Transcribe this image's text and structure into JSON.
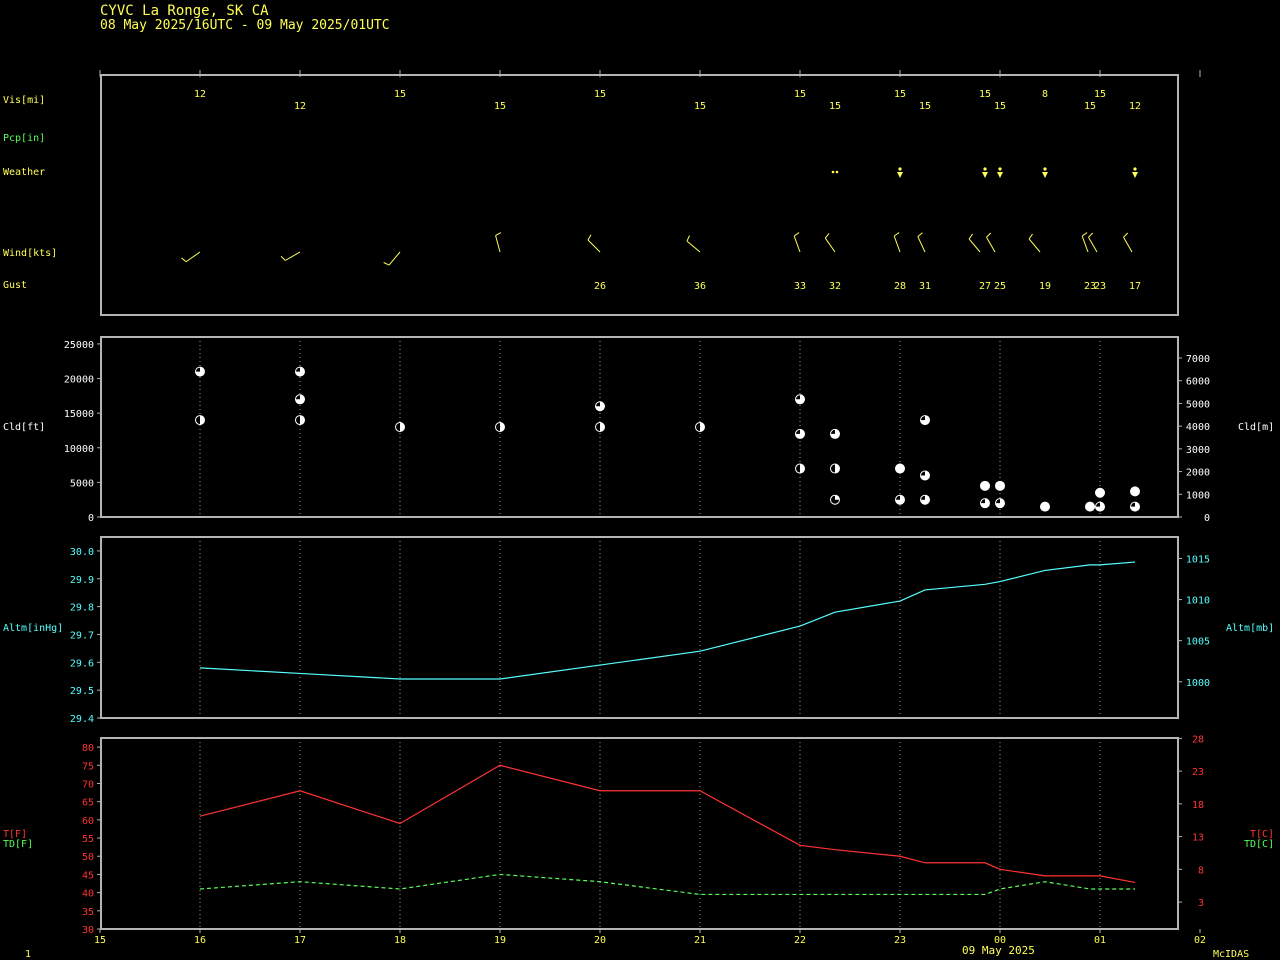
{
  "header": {
    "station": "CYVC  La Ronge, SK CA",
    "period": "08 May 2025/16UTC - 09 May 2025/01UTC"
  },
  "footer": {
    "left": "1",
    "date": "09 May 2025",
    "brand": "McIDAS"
  },
  "colors": {
    "frame": "#b4b4b4",
    "grid": "#9a9a9a",
    "yellow": "#ffff55",
    "green": "#55ff55",
    "cyan": "#55ffff",
    "red": "#ff3333",
    "white": "#ffffff",
    "bg": "#000000"
  },
  "chart_data": [
    {
      "type": "table",
      "rows": {
        "vis": "Vis[mi]",
        "pcp": "Pcp[in]",
        "weather": "Weather",
        "wind": "Wind[kts]",
        "gust": "Gust"
      },
      "visibility": [
        {
          "t": 16,
          "v": "12"
        },
        {
          "t": 17,
          "v": "12"
        },
        {
          "t": 18,
          "v": "15"
        },
        {
          "t": 19,
          "v": "15"
        },
        {
          "t": 20,
          "v": "15"
        },
        {
          "t": 21,
          "v": "15"
        },
        {
          "t": 22,
          "v": "15"
        },
        {
          "t": 22.35,
          "v": "15"
        },
        {
          "t": 23,
          "v": "15"
        },
        {
          "t": 23.25,
          "v": "15"
        },
        {
          "t": 23.85,
          "v": "15"
        },
        {
          "t": 24,
          "v": "15"
        },
        {
          "t": 24.45,
          "v": "8"
        },
        {
          "t": 24.9,
          "v": "15"
        },
        {
          "t": 25,
          "v": "15"
        },
        {
          "t": 25.35,
          "v": "12"
        }
      ],
      "weather": [
        {
          "t": 22.35,
          "symbol": "drizzle"
        },
        {
          "t": 23,
          "symbol": "rain-shower"
        },
        {
          "t": 23.85,
          "symbol": "rain-shower"
        },
        {
          "t": 24,
          "symbol": "rain-shower"
        },
        {
          "t": 24.45,
          "symbol": "rain-shower"
        },
        {
          "t": 25.35,
          "symbol": "rain-shower"
        }
      ],
      "wind": [
        {
          "t": 16,
          "dir": 235
        },
        {
          "t": 17,
          "dir": 240
        },
        {
          "t": 18,
          "dir": 220
        },
        {
          "t": 19,
          "dir": 345
        },
        {
          "t": 20,
          "dir": 315
        },
        {
          "t": 21,
          "dir": 310
        },
        {
          "t": 22,
          "dir": 340
        },
        {
          "t": 22.35,
          "dir": 325
        },
        {
          "t": 23,
          "dir": 340
        },
        {
          "t": 23.25,
          "dir": 335
        },
        {
          "t": 23.8,
          "dir": 320
        },
        {
          "t": 23.95,
          "dir": 330
        },
        {
          "t": 24.4,
          "dir": 320
        },
        {
          "t": 24.88,
          "dir": 340
        },
        {
          "t": 24.97,
          "dir": 330
        },
        {
          "t": 25.32,
          "dir": 330
        }
      ],
      "gusts": [
        {
          "t": 20,
          "v": "26"
        },
        {
          "t": 21,
          "v": "36"
        },
        {
          "t": 22,
          "v": "33"
        },
        {
          "t": 22.35,
          "v": "32"
        },
        {
          "t": 23,
          "v": "28"
        },
        {
          "t": 23.25,
          "v": "31"
        },
        {
          "t": 23.85,
          "v": "27"
        },
        {
          "t": 24,
          "v": "25"
        },
        {
          "t": 24.45,
          "v": "19"
        },
        {
          "t": 24.9,
          "v": "23"
        },
        {
          "t": 25,
          "v": "23"
        },
        {
          "t": 25.35,
          "v": "17"
        }
      ]
    },
    {
      "type": "scatter",
      "ylabel": "Cld[ft]",
      "ylabel_right": "Cld[m]",
      "ylim": [
        0,
        26000
      ],
      "yticks": [
        0,
        5000,
        10000,
        15000,
        20000,
        25000
      ],
      "yticks_right": [
        0,
        1000,
        2000,
        3000,
        4000,
        5000,
        6000,
        7000
      ],
      "cover_legend": "fraction of circle filled (cloud cover)",
      "points": [
        {
          "t": 16,
          "h": 21000,
          "f": 0.75
        },
        {
          "t": 16,
          "h": 14000,
          "f": 0.5
        },
        {
          "t": 17,
          "h": 21000,
          "f": 0.75
        },
        {
          "t": 17,
          "h": 17000,
          "f": 0.75
        },
        {
          "t": 17,
          "h": 14000,
          "f": 0.5
        },
        {
          "t": 18,
          "h": 13000,
          "f": 0.5
        },
        {
          "t": 19,
          "h": 13000,
          "f": 0.5
        },
        {
          "t": 20,
          "h": 16000,
          "f": 0.75
        },
        {
          "t": 20,
          "h": 13000,
          "f": 0.5
        },
        {
          "t": 21,
          "h": 13000,
          "f": 0.5
        },
        {
          "t": 22,
          "h": 17000,
          "f": 0.75
        },
        {
          "t": 22,
          "h": 12000,
          "f": 0.75
        },
        {
          "t": 22,
          "h": 7000,
          "f": 0.5
        },
        {
          "t": 22.35,
          "h": 12000,
          "f": 0.75
        },
        {
          "t": 22.35,
          "h": 7000,
          "f": 0.5
        },
        {
          "t": 22.35,
          "h": 2500,
          "f": 0.25
        },
        {
          "t": 23,
          "h": 7000,
          "f": 1
        },
        {
          "t": 23,
          "h": 2500,
          "f": 0.75
        },
        {
          "t": 23.25,
          "h": 14000,
          "f": 0.75
        },
        {
          "t": 23.25,
          "h": 6000,
          "f": 0.75
        },
        {
          "t": 23.25,
          "h": 2500,
          "f": 0.75
        },
        {
          "t": 23.85,
          "h": 4500,
          "f": 1
        },
        {
          "t": 23.85,
          "h": 2000,
          "f": 0.75
        },
        {
          "t": 24,
          "h": 4500,
          "f": 1
        },
        {
          "t": 24,
          "h": 2000,
          "f": 0.75
        },
        {
          "t": 24.45,
          "h": 1500,
          "f": 1
        },
        {
          "t": 24.9,
          "h": 1500,
          "f": 1
        },
        {
          "t": 25,
          "h": 3500,
          "f": 1
        },
        {
          "t": 25,
          "h": 1500,
          "f": 0.75
        },
        {
          "t": 25.35,
          "h": 3700,
          "f": 1
        },
        {
          "t": 25.35,
          "h": 1500,
          "f": 0.75
        }
      ]
    },
    {
      "type": "line",
      "ylabel": "Altm[inHg]",
      "ylabel_right": "Altm[mb]",
      "ylim": [
        29.4,
        30.05
      ],
      "yticks": [
        "29.4",
        "29.5",
        "29.6",
        "29.7",
        "29.8",
        "29.9",
        "30.0"
      ],
      "yticks_right": [
        1000,
        1005,
        1010,
        1015
      ],
      "x": [
        16,
        17,
        18,
        19,
        20,
        21,
        22,
        22.35,
        23,
        23.25,
        23.85,
        24,
        24.45,
        24.9,
        25,
        25.35
      ],
      "values": [
        29.58,
        29.56,
        29.54,
        29.54,
        29.59,
        29.64,
        29.73,
        29.78,
        29.82,
        29.86,
        29.88,
        29.89,
        29.93,
        29.95,
        29.95,
        29.96
      ]
    },
    {
      "type": "line",
      "ylabel_t": "T[F]",
      "ylabel_td": "TD[F]",
      "ylabel_t_right": "T[C]",
      "ylabel_td_right": "TD[C]",
      "ylim": [
        30,
        82.5
      ],
      "yticks": [
        30,
        35,
        40,
        45,
        50,
        55,
        60,
        65,
        70,
        75,
        80
      ],
      "yticks_right": [
        3,
        8,
        13,
        18,
        23,
        28
      ],
      "x_ticks": [
        "15",
        "16",
        "17",
        "18",
        "19",
        "20",
        "21",
        "22",
        "23",
        "00",
        "01",
        "02"
      ],
      "x": [
        16,
        17,
        18,
        19,
        20,
        21,
        22,
        22.35,
        23,
        23.25,
        23.85,
        24,
        24.45,
        24.9,
        25,
        25.35
      ],
      "series": [
        {
          "name": "T[F]",
          "values": [
            61,
            68,
            59,
            75,
            68,
            68,
            53,
            51.8,
            50,
            48.2,
            48.2,
            46.4,
            44.6,
            44.6,
            44.6,
            42.8
          ]
        },
        {
          "name": "TD[F]",
          "values": [
            41,
            43,
            41,
            45,
            43,
            39.5,
            39.5,
            39.5,
            39.5,
            39.5,
            39.5,
            41,
            43,
            41,
            41,
            41
          ]
        }
      ]
    }
  ]
}
